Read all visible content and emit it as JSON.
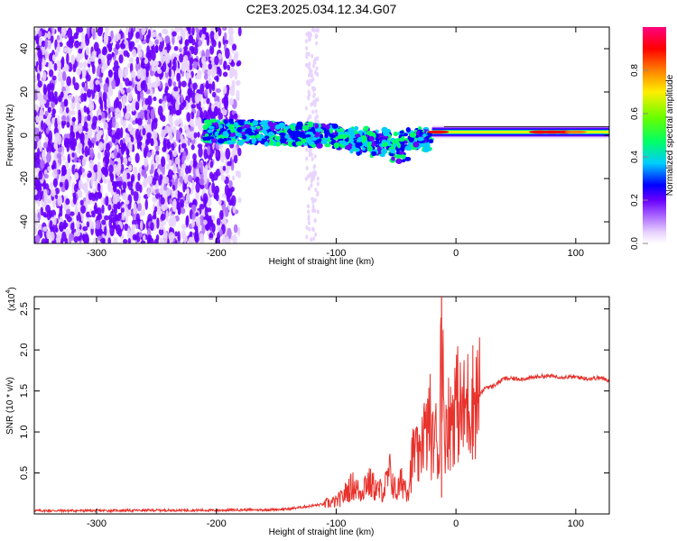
{
  "chart_data": [
    {
      "type": "heatmap",
      "title": "C2E3.2025.034.12.34.G07",
      "xlabel": "Height of straight line (km)",
      "ylabel": "Frequency (Hz)",
      "xlim": [
        -352,
        128
      ],
      "ylim": [
        -50,
        50
      ],
      "x_ticks": [
        -300,
        -200,
        -100,
        0,
        100
      ],
      "y_ticks": [
        -40,
        -20,
        0,
        20,
        40
      ],
      "x_tick_labels": [
        "-300",
        "-200",
        "-100",
        "0",
        "100"
      ],
      "y_tick_labels": [
        "-40",
        "-20",
        "0",
        "20",
        "40"
      ],
      "colorbar": {
        "label": "Normalized spectral amplitude",
        "range": [
          0,
          1
        ],
        "ticks": [
          0.0,
          0.2,
          0.4,
          0.6,
          0.8
        ],
        "tick_labels": [
          "0.0",
          "0.2",
          "0.4",
          "0.6",
          "0.8"
        ],
        "colormap": [
          "#ffffff",
          "#cc99ff",
          "#7a00ff",
          "#0000ff",
          "#00ffff",
          "#00ff00",
          "#ffff00",
          "#ff8000",
          "#ff0000",
          "#ff0080"
        ]
      },
      "features": [
        {
          "description_x_range": [
            -352,
            -180
          ],
          "frequency_range": [
            -50,
            50
          ],
          "amplitude": 0.15
        },
        {
          "description_x_range": [
            -210,
            -20
          ],
          "frequency_center": [
            2,
            -2
          ],
          "amplitude": 0.35
        },
        {
          "description_x_range": [
            -20,
            128
          ],
          "frequency_center": 1.5,
          "amplitude": 0.85
        }
      ],
      "grid": false
    },
    {
      "type": "line",
      "xlabel": "Height of straight line (km)",
      "ylabel": "SNR (10 * v/v)",
      "y_multiplier": "(x10",
      "y_exponent": "4",
      "y_multiplier_close": ")",
      "xlim": [
        -352,
        128
      ],
      "ylim": [
        0,
        26500
      ],
      "x_ticks": [
        -300,
        -200,
        -100,
        0,
        100
      ],
      "y_ticks": [
        5000,
        10000,
        15000,
        20000,
        25000
      ],
      "x_tick_labels": [
        "-300",
        "-200",
        "-100",
        "0",
        "100"
      ],
      "y_tick_labels": [
        "0.5",
        "1.0",
        "1.5",
        "2.0",
        "2.5"
      ],
      "color": "#e8322c",
      "series": [
        {
          "x": [
            -352,
            -300,
            -250,
            -200,
            -180,
            -160,
            -140,
            -120,
            -110,
            -100,
            -95,
            -90,
            -85,
            -80,
            -75,
            -70,
            -65,
            -60,
            -55,
            -50,
            -45,
            -40,
            -35,
            -30,
            -28,
            -25,
            -22,
            -20,
            -18,
            -16,
            -14,
            -12,
            -10,
            -8,
            -5,
            0,
            5,
            10,
            15,
            20,
            25,
            30,
            35,
            40,
            50,
            60,
            70,
            80,
            90,
            100,
            110,
            120,
            128
          ],
          "y": [
            400,
            400,
            450,
            450,
            500,
            500,
            600,
            1000,
            1200,
            1500,
            2000,
            3000,
            3500,
            2500,
            4000,
            3500,
            2800,
            3000,
            5000,
            2500,
            4000,
            3000,
            8000,
            6000,
            11000,
            9000,
            12000,
            8000,
            10000,
            9000,
            6000,
            26500,
            9000,
            12000,
            11000,
            14000,
            12000,
            13500,
            14000,
            14500,
            15500,
            15500,
            16000,
            16500,
            16500,
            16500,
            16800,
            16800,
            16700,
            16700,
            16500,
            16600,
            16300
          ]
        }
      ],
      "grid": false
    }
  ]
}
